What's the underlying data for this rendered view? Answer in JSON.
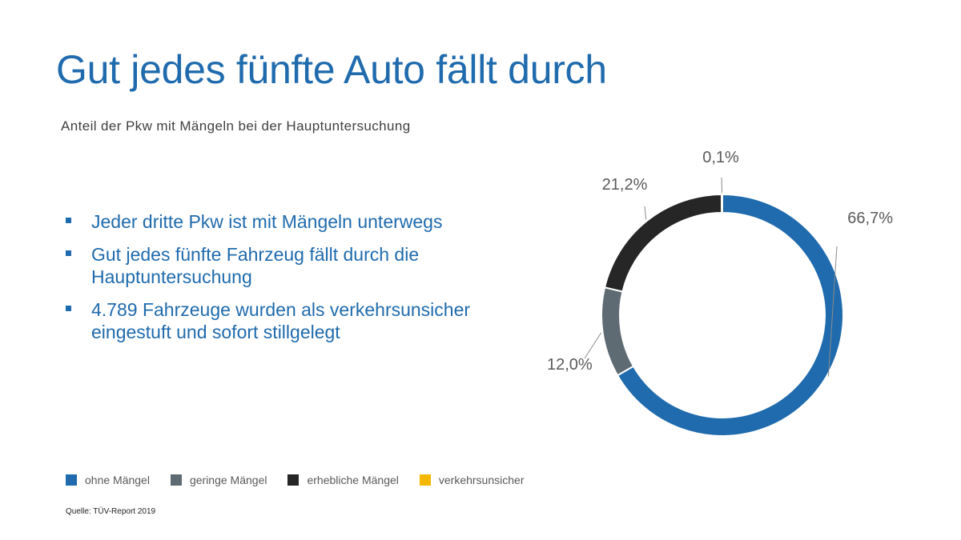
{
  "title": "Gut jedes fünfte Auto fällt durch",
  "subtitle": "Anteil der Pkw mit Mängeln bei der Hauptuntersuchung",
  "bullets": [
    "Jeder dritte Pkw ist mit Mängeln unterwegs",
    "Gut jedes fünfte Fahrzeug fällt durch die Hauptuntersuchung",
    "4.789 Fahrzeuge wurden als verkehrsunsicher eingestuft und sofort stillgelegt"
  ],
  "source": "Quelle: TÜV-Report 2019",
  "chart_data": {
    "type": "pie",
    "style": "donut",
    "categories": [
      "ohne Mängel",
      "geringe Mängel",
      "erhebliche Mängel",
      "verkehrsunsicher"
    ],
    "values": [
      66.7,
      12.0,
      21.2,
      0.1
    ],
    "labels": [
      "66,7%",
      "12,0%",
      "21,2%",
      "0,1%"
    ],
    "colors": [
      "#1F6BAD",
      "#5F6B73",
      "#262626",
      "#F5B800"
    ],
    "legend_position": "bottom-left"
  }
}
